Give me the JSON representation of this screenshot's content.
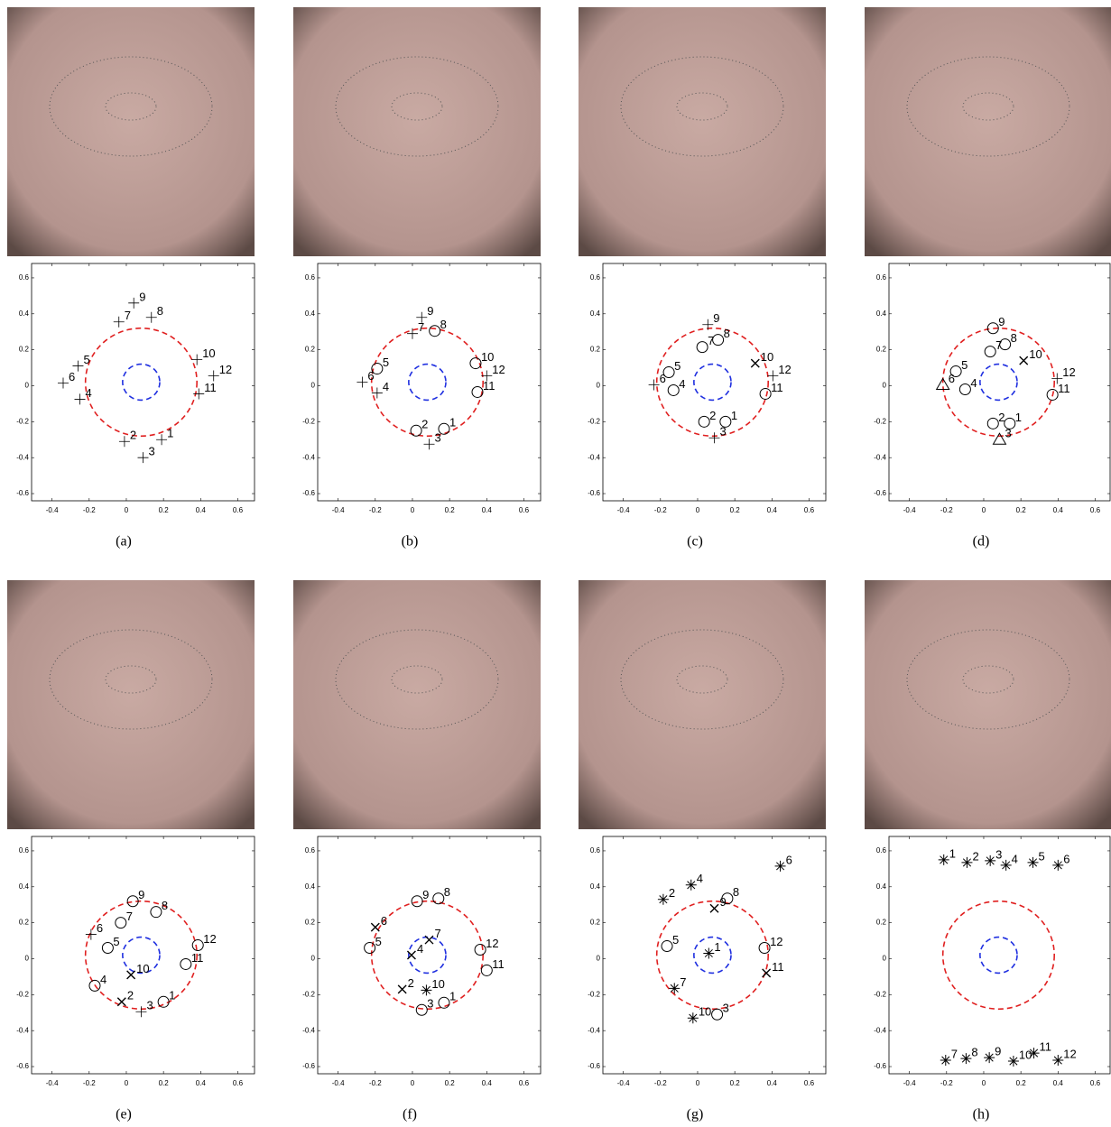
{
  "chart_data": [
    {
      "type": "scatter",
      "caption": "(a)",
      "xlim": [
        -0.51,
        0.69
      ],
      "ylim": [
        -0.64,
        0.68
      ],
      "xticks": [
        -0.4,
        -0.2,
        0,
        0.2,
        0.4,
        0.6
      ],
      "yticks": [
        -0.6,
        -0.4,
        -0.2,
        0,
        0.2,
        0.4,
        0.6
      ],
      "circles": [
        {
          "cx": 0.08,
          "cy": 0.02,
          "r": 0.3,
          "color": "#e02020"
        },
        {
          "cx": 0.08,
          "cy": 0.02,
          "r": 0.1,
          "color": "#2030e0"
        }
      ],
      "x": [
        0.19,
        -0.01,
        0.09,
        -0.25,
        -0.26,
        -0.34,
        -0.04,
        0.135,
        0.04,
        0.38,
        0.39,
        0.47
      ],
      "y": [
        -0.3,
        -0.31,
        -0.4,
        -0.075,
        0.11,
        0.015,
        0.355,
        0.38,
        0.46,
        0.145,
        -0.045,
        0.055
      ],
      "labels": [
        "1",
        "2",
        "3",
        "4",
        "5",
        "6",
        "7",
        "8",
        "9",
        "10",
        "11",
        "12"
      ],
      "markers": [
        "+",
        "+",
        "+",
        "+",
        "+",
        "+",
        "+",
        "+",
        "+",
        "+",
        "+",
        "+"
      ]
    },
    {
      "type": "scatter",
      "caption": "(b)",
      "xlim": [
        -0.51,
        0.69
      ],
      "ylim": [
        -0.64,
        0.68
      ],
      "xticks": [
        -0.4,
        -0.2,
        0,
        0.2,
        0.4,
        0.6
      ],
      "yticks": [
        -0.6,
        -0.4,
        -0.2,
        0,
        0.2,
        0.4,
        0.6
      ],
      "circles": [
        {
          "cx": 0.08,
          "cy": 0.02,
          "r": 0.3,
          "color": "#e02020"
        },
        {
          "cx": 0.08,
          "cy": 0.02,
          "r": 0.1,
          "color": "#2030e0"
        }
      ],
      "x": [
        0.17,
        0.02,
        0.09,
        -0.19,
        -0.19,
        -0.27,
        0.0,
        0.12,
        0.05,
        0.34,
        0.35,
        0.4
      ],
      "y": [
        -0.24,
        -0.25,
        -0.325,
        -0.04,
        0.095,
        0.02,
        0.29,
        0.305,
        0.38,
        0.125,
        -0.035,
        0.055
      ],
      "labels": [
        "1",
        "2",
        "3",
        "4",
        "5",
        "6",
        "7",
        "8",
        "9",
        "10",
        "11",
        "12"
      ],
      "markers": [
        "o",
        "o",
        "+",
        "+",
        "o",
        "+",
        "+",
        "o",
        "+",
        "o",
        "o",
        "+"
      ]
    },
    {
      "type": "scatter",
      "caption": "(c)",
      "xlim": [
        -0.51,
        0.69
      ],
      "ylim": [
        -0.64,
        0.68
      ],
      "xticks": [
        -0.4,
        -0.2,
        0,
        0.2,
        0.4,
        0.6
      ],
      "yticks": [
        -0.6,
        -0.4,
        -0.2,
        0,
        0.2,
        0.4,
        0.6
      ],
      "circles": [
        {
          "cx": 0.08,
          "cy": 0.02,
          "r": 0.3,
          "color": "#e02020"
        },
        {
          "cx": 0.08,
          "cy": 0.02,
          "r": 0.1,
          "color": "#2030e0"
        }
      ],
      "x": [
        0.15,
        0.035,
        0.09,
        -0.13,
        -0.155,
        -0.235,
        0.025,
        0.11,
        0.055,
        0.31,
        0.365,
        0.405
      ],
      "y": [
        -0.2,
        -0.2,
        -0.29,
        -0.025,
        0.075,
        0.005,
        0.215,
        0.255,
        0.34,
        0.125,
        -0.045,
        0.055
      ],
      "labels": [
        "1",
        "2",
        "3",
        "4",
        "5",
        "6",
        "7",
        "8",
        "9",
        "10",
        "11",
        "12"
      ],
      "markers": [
        "o",
        "o",
        "+",
        "o",
        "o",
        "+",
        "o",
        "o",
        "+",
        "x",
        "o",
        "+"
      ]
    },
    {
      "type": "scatter",
      "caption": "(d)",
      "xlim": [
        -0.51,
        0.69
      ],
      "ylim": [
        -0.64,
        0.68
      ],
      "xticks": [
        -0.4,
        -0.2,
        0,
        0.2,
        0.4,
        0.6
      ],
      "yticks": [
        -0.6,
        -0.4,
        -0.2,
        0,
        0.2,
        0.4,
        0.6
      ],
      "circles": [
        {
          "cx": 0.08,
          "cy": 0.02,
          "r": 0.3,
          "color": "#e02020"
        },
        {
          "cx": 0.08,
          "cy": 0.02,
          "r": 0.1,
          "color": "#2030e0"
        }
      ],
      "x": [
        0.14,
        0.05,
        0.085,
        -0.1,
        -0.15,
        -0.22,
        0.035,
        0.115,
        0.05,
        0.215,
        0.37,
        0.395
      ],
      "y": [
        -0.21,
        -0.21,
        -0.3,
        -0.02,
        0.08,
        0.005,
        0.19,
        0.23,
        0.32,
        0.14,
        -0.05,
        0.04
      ],
      "labels": [
        "1",
        "2",
        "3",
        "4",
        "5",
        "6",
        "7",
        "8",
        "9",
        "10",
        "11",
        "12"
      ],
      "markers": [
        "o",
        "o",
        "^",
        "o",
        "o",
        "^",
        "o",
        "o",
        "o",
        "x",
        "o",
        "+"
      ]
    },
    {
      "type": "scatter",
      "caption": "(e)",
      "xlim": [
        -0.51,
        0.69
      ],
      "ylim": [
        -0.64,
        0.68
      ],
      "xticks": [
        -0.4,
        -0.2,
        0,
        0.2,
        0.4,
        0.6
      ],
      "yticks": [
        -0.6,
        -0.4,
        -0.2,
        0,
        0.2,
        0.4,
        0.6
      ],
      "circles": [
        {
          "cx": 0.08,
          "cy": 0.02,
          "r": 0.3,
          "color": "#e02020"
        },
        {
          "cx": 0.08,
          "cy": 0.02,
          "r": 0.1,
          "color": "#2030e0"
        }
      ],
      "x": [
        0.2,
        -0.025,
        0.08,
        -0.17,
        -0.1,
        -0.19,
        -0.03,
        0.16,
        0.035,
        0.025,
        0.32,
        0.385
      ],
      "y": [
        -0.24,
        -0.24,
        -0.295,
        -0.15,
        0.06,
        0.135,
        0.2,
        0.26,
        0.32,
        -0.09,
        -0.03,
        0.075
      ],
      "labels": [
        "1",
        "2",
        "3",
        "4",
        "5",
        "6",
        "7",
        "8",
        "9",
        "10",
        "11",
        "12"
      ],
      "markers": [
        "o",
        "x",
        "+",
        "o",
        "o",
        "+",
        "o",
        "o",
        "o",
        "x",
        "o",
        "o"
      ]
    },
    {
      "type": "scatter",
      "caption": "(f)",
      "xlim": [
        -0.51,
        0.69
      ],
      "ylim": [
        -0.64,
        0.68
      ],
      "xticks": [
        -0.4,
        -0.2,
        0,
        0.2,
        0.4,
        0.6
      ],
      "yticks": [
        -0.6,
        -0.4,
        -0.2,
        0,
        0.2,
        0.4,
        0.6
      ],
      "circles": [
        {
          "cx": 0.08,
          "cy": 0.02,
          "r": 0.3,
          "color": "#e02020"
        },
        {
          "cx": 0.08,
          "cy": 0.02,
          "r": 0.1,
          "color": "#2030e0"
        }
      ],
      "x": [
        0.17,
        -0.055,
        0.05,
        -0.005,
        -0.23,
        -0.2,
        0.09,
        0.14,
        0.025,
        0.075,
        0.4,
        0.365
      ],
      "y": [
        -0.245,
        -0.17,
        -0.285,
        0.02,
        0.06,
        0.175,
        0.105,
        0.335,
        0.32,
        -0.175,
        -0.065,
        0.05
      ],
      "labels": [
        "1",
        "2",
        "3",
        "4",
        "5",
        "6",
        "7",
        "8",
        "9",
        "10",
        "11",
        "12"
      ],
      "markers": [
        "o",
        "x",
        "o",
        "x",
        "o",
        "x",
        "x",
        "o",
        "o",
        "*",
        "o",
        "o"
      ]
    },
    {
      "type": "scatter",
      "caption": "(g)",
      "xlim": [
        -0.51,
        0.69
      ],
      "ylim": [
        -0.64,
        0.68
      ],
      "xticks": [
        -0.4,
        -0.2,
        0,
        0.2,
        0.4,
        0.6
      ],
      "yticks": [
        -0.6,
        -0.4,
        -0.2,
        0,
        0.2,
        0.4,
        0.6
      ],
      "circles": [
        {
          "cx": 0.08,
          "cy": 0.02,
          "r": 0.3,
          "color": "#e02020"
        },
        {
          "cx": 0.08,
          "cy": 0.02,
          "r": 0.1,
          "color": "#2030e0"
        }
      ],
      "x": [
        0.06,
        -0.185,
        0.105,
        -0.035,
        -0.165,
        0.445,
        -0.125,
        0.16,
        0.09,
        -0.025,
        0.37,
        0.36
      ],
      "y": [
        0.03,
        0.33,
        -0.31,
        0.41,
        0.07,
        0.515,
        -0.165,
        0.335,
        0.28,
        -0.33,
        -0.08,
        0.06
      ],
      "labels": [
        "1",
        "2",
        "3",
        "4",
        "5",
        "6",
        "7",
        "8",
        "9",
        "10",
        "11",
        "12"
      ],
      "markers": [
        "*",
        "*",
        "o",
        "*",
        "o",
        "*",
        "*",
        "o",
        "x",
        "*",
        "x",
        "o"
      ]
    },
    {
      "type": "scatter",
      "caption": "(h)",
      "xlim": [
        -0.51,
        0.69
      ],
      "ylim": [
        -0.64,
        0.68
      ],
      "xticks": [
        -0.4,
        -0.2,
        0,
        0.2,
        0.4,
        0.6
      ],
      "yticks": [
        -0.6,
        -0.4,
        -0.2,
        0,
        0.2,
        0.4,
        0.6
      ],
      "circles": [
        {
          "cx": 0.08,
          "cy": 0.02,
          "r": 0.3,
          "color": "#e02020"
        },
        {
          "cx": 0.08,
          "cy": 0.02,
          "r": 0.1,
          "color": "#2030e0"
        }
      ],
      "x": [
        -0.215,
        -0.09,
        0.035,
        0.12,
        0.265,
        0.4,
        -0.205,
        -0.095,
        0.03,
        0.16,
        0.27,
        0.4
      ],
      "y": [
        0.55,
        0.535,
        0.545,
        0.52,
        0.535,
        0.52,
        -0.565,
        -0.555,
        -0.55,
        -0.57,
        -0.525,
        -0.565
      ],
      "labels": [
        "1",
        "2",
        "3",
        "4",
        "5",
        "6",
        "7",
        "8",
        "9",
        "10",
        "11",
        "12"
      ],
      "markers": [
        "*",
        "*",
        "*",
        "*",
        "*",
        "*",
        "*",
        "*",
        "*",
        "*",
        "*",
        "*"
      ]
    }
  ]
}
